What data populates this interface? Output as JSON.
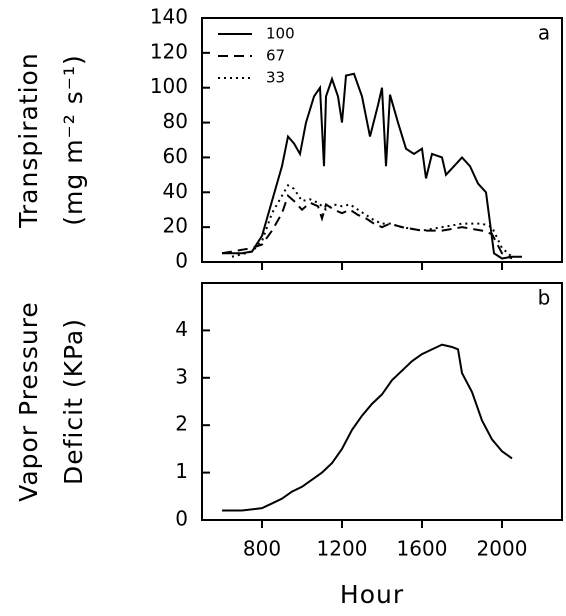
{
  "chart_data": [
    {
      "type": "line",
      "annotation": "a",
      "ylabel": [
        "Transpiration",
        "(mg m⁻² s⁻¹)"
      ],
      "xlim": [
        500,
        2300
      ],
      "xticks": [
        800,
        1200,
        1600,
        2000
      ],
      "xtick_labels": false,
      "ylim": [
        0,
        140
      ],
      "yticks": [
        0,
        20,
        40,
        60,
        80,
        100,
        120,
        140
      ],
      "legend": "upper left",
      "series": [
        {
          "name": "100",
          "color": "#000000",
          "dash": "solid",
          "x": [
            600,
            700,
            750,
            800,
            850,
            900,
            930,
            960,
            990,
            1020,
            1060,
            1090,
            1110,
            1120,
            1150,
            1180,
            1200,
            1220,
            1260,
            1300,
            1340,
            1380,
            1400,
            1420,
            1440,
            1480,
            1520,
            1560,
            1600,
            1620,
            1650,
            1700,
            1720,
            1760,
            1800,
            1840,
            1880,
            1920,
            1960,
            2000,
            2050,
            2100
          ],
          "values": [
            5,
            5,
            6,
            15,
            35,
            55,
            72,
            68,
            62,
            80,
            95,
            100,
            55,
            95,
            105,
            95,
            80,
            107,
            108,
            95,
            72,
            90,
            100,
            55,
            96,
            80,
            65,
            62,
            65,
            48,
            62,
            60,
            50,
            55,
            60,
            55,
            45,
            40,
            5,
            2,
            3,
            3
          ]
        },
        {
          "name": "67",
          "color": "#000000",
          "dash": "dashed",
          "x": [
            600,
            750,
            800,
            850,
            900,
            930,
            960,
            1000,
            1040,
            1080,
            1100,
            1120,
            1160,
            1200,
            1240,
            1280,
            1320,
            1360,
            1400,
            1440,
            1500,
            1600,
            1700,
            1800,
            1900,
            1950,
            2000,
            2050
          ],
          "values": [
            5,
            8,
            10,
            18,
            28,
            38,
            35,
            30,
            34,
            32,
            25,
            33,
            30,
            28,
            30,
            27,
            25,
            22,
            20,
            22,
            20,
            18,
            18,
            20,
            18,
            16,
            5,
            2
          ]
        },
        {
          "name": "33",
          "color": "#000000",
          "dash": "dotted",
          "x": [
            650,
            750,
            800,
            850,
            900,
            930,
            960,
            1000,
            1040,
            1080,
            1120,
            1160,
            1200,
            1240,
            1280,
            1320,
            1360,
            1400,
            1440,
            1500,
            1600,
            1700,
            1800,
            1900,
            1950,
            2000,
            2050
          ],
          "values": [
            3,
            6,
            12,
            28,
            38,
            44,
            42,
            35,
            36,
            34,
            30,
            33,
            32,
            33,
            30,
            27,
            24,
            22,
            22,
            20,
            18,
            20,
            22,
            22,
            20,
            8,
            3
          ]
        }
      ]
    },
    {
      "type": "line",
      "annotation": "b",
      "ylabel": [
        "Vapor Pressure",
        "Deficit (KPa)"
      ],
      "xlabel": "Hour",
      "xlim": [
        500,
        2300
      ],
      "xticks": [
        800,
        1200,
        1600,
        2000
      ],
      "xtick_labels": true,
      "ylim": [
        0,
        5
      ],
      "yticks": [
        0,
        1,
        2,
        3,
        4
      ],
      "series": [
        {
          "color": "#000000",
          "dash": "solid",
          "x": [
            600,
            700,
            800,
            850,
            900,
            950,
            1000,
            1050,
            1100,
            1150,
            1200,
            1250,
            1300,
            1350,
            1400,
            1450,
            1500,
            1550,
            1600,
            1650,
            1700,
            1750,
            1780,
            1800,
            1850,
            1900,
            1950,
            2000,
            2050
          ],
          "values": [
            0.2,
            0.2,
            0.25,
            0.35,
            0.45,
            0.6,
            0.7,
            0.85,
            1.0,
            1.2,
            1.5,
            1.9,
            2.2,
            2.45,
            2.65,
            2.95,
            3.15,
            3.35,
            3.5,
            3.6,
            3.7,
            3.65,
            3.6,
            3.1,
            2.7,
            2.1,
            1.7,
            1.45,
            1.3
          ]
        }
      ]
    }
  ]
}
